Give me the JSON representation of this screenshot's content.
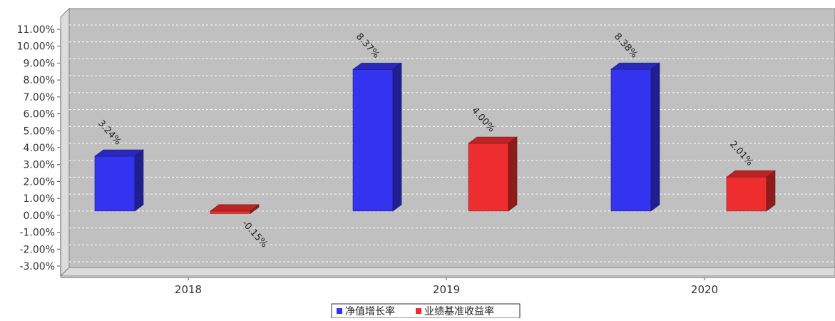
{
  "chart_data": {
    "type": "bar",
    "categories": [
      "2018",
      "2019",
      "2020"
    ],
    "series": [
      {
        "name": "净值增长率",
        "values": [
          3.24,
          8.37,
          8.38
        ],
        "labels": [
          "3.24%",
          "8.37%",
          "8.38%"
        ],
        "color": "#3333f0"
      },
      {
        "name": "业绩基准收益率",
        "values": [
          -0.15,
          4.0,
          2.01
        ],
        "labels": [
          "-0.15%",
          "4.00%",
          "2.01%"
        ],
        "color": "#ee2e2e"
      }
    ],
    "ylim": [
      -3,
      11
    ],
    "yticks": [
      11,
      10,
      9,
      8,
      7,
      6,
      5,
      4,
      3,
      2,
      1,
      0,
      -1,
      -2,
      -3
    ],
    "ytick_labels": [
      "11.00%",
      "10.00%",
      "9.00%",
      "8.00%",
      "7.00%",
      "6.00%",
      "5.00%",
      "4.00%",
      "3.00%",
      "2.00%",
      "1.00%",
      "0.00%",
      "-1.00%",
      "-2.00%",
      "-3.00%"
    ],
    "grid": true,
    "legend_position": "bottom",
    "three_d": true,
    "plot_background": "#c0c0c0"
  }
}
